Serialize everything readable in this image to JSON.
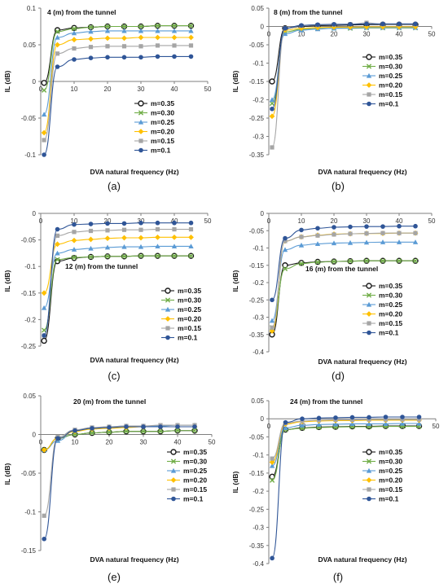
{
  "legend_labels": [
    "m=0.35",
    "m=0.30",
    "m=0.25",
    "m=0.20",
    "m=0.15",
    "m=0.1"
  ],
  "series_style": [
    {
      "color": "#1a1a1a",
      "marker": "circle-open"
    },
    {
      "color": "#70ad47",
      "marker": "x"
    },
    {
      "color": "#5b9bd5",
      "marker": "triangle"
    },
    {
      "color": "#ffc000",
      "marker": "diamond"
    },
    {
      "color": "#a5a5a5",
      "marker": "square"
    },
    {
      "color": "#2f5597",
      "marker": "circle"
    }
  ],
  "chart_data": [
    {
      "type": "line",
      "panel_label": "(a)",
      "annotation": "4 (m) from the tunnel",
      "xlabel": "DVA natural frequency (Hz)",
      "ylabel": "IL (dB)",
      "xlim": [
        0,
        50
      ],
      "ylim": [
        -0.1,
        0.1
      ],
      "xticks": [
        0,
        10,
        20,
        30,
        40,
        50
      ],
      "yticks": [
        -0.1,
        -0.05,
        0,
        0.05,
        0.1
      ],
      "xtick_labels": [
        "0",
        "10",
        "20",
        "30",
        "40",
        "50"
      ],
      "ytick_labels": [
        "-0.1",
        "-0.05",
        "0",
        "0.05",
        "0.1"
      ],
      "x": [
        1,
        5,
        10,
        15,
        20,
        25,
        30,
        35,
        40,
        45
      ],
      "series": [
        {
          "name": "m=0.35",
          "values": [
            -0.002,
            0.07,
            0.073,
            0.074,
            0.075,
            0.075,
            0.075,
            0.076,
            0.076,
            0.076
          ]
        },
        {
          "name": "m=0.30",
          "values": [
            -0.012,
            0.068,
            0.072,
            0.074,
            0.075,
            0.075,
            0.075,
            0.076,
            0.076,
            0.076
          ]
        },
        {
          "name": "m=0.25",
          "values": [
            -0.045,
            0.06,
            0.066,
            0.068,
            0.069,
            0.069,
            0.069,
            0.069,
            0.069,
            0.069
          ]
        },
        {
          "name": "m=0.20",
          "values": [
            -0.07,
            0.05,
            0.057,
            0.058,
            0.059,
            0.059,
            0.06,
            0.06,
            0.06,
            0.06
          ]
        },
        {
          "name": "m=0.15",
          "values": [
            -0.08,
            0.038,
            0.045,
            0.047,
            0.048,
            0.048,
            0.048,
            0.049,
            0.049,
            0.049
          ]
        },
        {
          "name": "m=0.1",
          "values": [
            -0.1,
            0.02,
            0.03,
            0.032,
            0.033,
            0.033,
            0.033,
            0.034,
            0.034,
            0.034
          ]
        }
      ]
    },
    {
      "type": "line",
      "panel_label": "(b)",
      "annotation": "8 (m) from the tunnel",
      "xlabel": "DVA natural frequency (Hz)",
      "ylabel": "IL (dB)",
      "xlim": [
        0,
        50
      ],
      "ylim": [
        -0.35,
        0.05
      ],
      "xticks": [
        0,
        10,
        20,
        30,
        40,
        50
      ],
      "yticks": [
        -0.35,
        -0.3,
        -0.25,
        -0.2,
        -0.15,
        -0.1,
        -0.05,
        0,
        0.05
      ],
      "xtick_labels": [
        "0",
        "10",
        "20",
        "30",
        "40",
        "50"
      ],
      "ytick_labels": [
        "-0.35",
        "-0.3",
        "-0.25",
        "-0.2",
        "-0.15",
        "-0.1",
        "-0.05",
        "0",
        "0.05"
      ],
      "x": [
        1,
        5,
        10,
        15,
        20,
        25,
        30,
        35,
        40,
        45
      ],
      "series": [
        {
          "name": "m=0.35",
          "values": [
            -0.15,
            -0.005,
            0.0,
            0.002,
            0.003,
            0.004,
            0.005,
            0.005,
            0.005,
            0.005
          ]
        },
        {
          "name": "m=0.30",
          "values": [
            -0.21,
            -0.015,
            -0.008,
            -0.006,
            -0.005,
            -0.005,
            -0.004,
            -0.004,
            -0.004,
            -0.004
          ]
        },
        {
          "name": "m=0.25",
          "values": [
            -0.2,
            -0.02,
            -0.01,
            -0.007,
            -0.005,
            -0.004,
            -0.003,
            -0.003,
            -0.003,
            -0.003
          ]
        },
        {
          "name": "m=0.20",
          "values": [
            -0.245,
            -0.01,
            -0.005,
            -0.003,
            -0.002,
            -0.002,
            -0.001,
            -0.001,
            -0.001,
            -0.001
          ]
        },
        {
          "name": "m=0.15",
          "values": [
            -0.33,
            -0.005,
            0.002,
            0.004,
            0.005,
            0.006,
            0.01,
            0.006,
            0.006,
            0.006
          ]
        },
        {
          "name": "m=0.1",
          "values": [
            -0.225,
            -0.005,
            0.003,
            0.005,
            0.006,
            0.006,
            0.007,
            0.007,
            0.007,
            0.007
          ]
        }
      ]
    },
    {
      "type": "line",
      "panel_label": "(c)",
      "annotation": "12 (m) from the tunnel",
      "xlabel": "DVA natural frequency (Hz)",
      "ylabel": "IL (dB)",
      "xlim": [
        0,
        50
      ],
      "ylim": [
        -0.25,
        0
      ],
      "xticks": [
        0,
        10,
        20,
        30,
        40,
        50
      ],
      "yticks": [
        -0.25,
        -0.2,
        -0.15,
        -0.1,
        -0.05,
        0
      ],
      "xtick_labels": [
        "0",
        "10",
        "20",
        "30",
        "40",
        "50"
      ],
      "ytick_labels": [
        "-0.25",
        "-0.2",
        "-0.15",
        "-0.1",
        "-0.05",
        "0"
      ],
      "x": [
        1,
        5,
        10,
        15,
        20,
        25,
        30,
        35,
        40,
        45
      ],
      "series": [
        {
          "name": "m=0.35",
          "values": [
            -0.24,
            -0.09,
            -0.084,
            -0.082,
            -0.081,
            -0.081,
            -0.08,
            -0.08,
            -0.08,
            -0.08
          ]
        },
        {
          "name": "m=0.30",
          "values": [
            -0.22,
            -0.087,
            -0.083,
            -0.082,
            -0.081,
            -0.081,
            -0.08,
            -0.08,
            -0.08,
            -0.08
          ]
        },
        {
          "name": "m=0.25",
          "values": [
            -0.178,
            -0.075,
            -0.068,
            -0.066,
            -0.064,
            -0.063,
            -0.063,
            -0.062,
            -0.062,
            -0.062
          ]
        },
        {
          "name": "m=0.20",
          "values": [
            -0.15,
            -0.058,
            -0.051,
            -0.049,
            -0.047,
            -0.046,
            -0.046,
            -0.045,
            -0.045,
            -0.045
          ]
        },
        {
          "name": "m=0.15",
          "values": [
            -0.23,
            -0.042,
            -0.035,
            -0.033,
            -0.032,
            -0.031,
            -0.031,
            -0.03,
            -0.03,
            -0.03
          ]
        },
        {
          "name": "m=0.1",
          "values": [
            -0.23,
            -0.03,
            -0.021,
            -0.02,
            -0.019,
            -0.019,
            -0.018,
            -0.018,
            -0.018,
            -0.018
          ]
        }
      ]
    },
    {
      "type": "line",
      "panel_label": "(d)",
      "annotation": "16 (m) from the tunnel",
      "xlabel": "DVA natural frequency (Hz)",
      "ylabel": "IL (dB)",
      "xlim": [
        0,
        50
      ],
      "ylim": [
        -0.4,
        0
      ],
      "xticks": [
        0,
        10,
        20,
        30,
        40,
        50
      ],
      "yticks": [
        -0.4,
        -0.35,
        -0.3,
        -0.25,
        -0.2,
        -0.15,
        -0.1,
        -0.05,
        0
      ],
      "xtick_labels": [
        "0",
        "10",
        "20",
        "30",
        "40",
        "50"
      ],
      "ytick_labels": [
        "-0.4",
        "-0.35",
        "-0.3",
        "-0.25",
        "-0.2",
        "-0.15",
        "-0.1",
        "-0.05",
        "0"
      ],
      "x": [
        1,
        5,
        10,
        15,
        20,
        25,
        30,
        35,
        40,
        45
      ],
      "series": [
        {
          "name": "m=0.35",
          "values": [
            -0.35,
            -0.15,
            -0.143,
            -0.14,
            -0.139,
            -0.138,
            -0.137,
            -0.137,
            -0.137,
            -0.137
          ]
        },
        {
          "name": "m=0.30",
          "values": [
            -0.33,
            -0.16,
            -0.145,
            -0.141,
            -0.139,
            -0.138,
            -0.137,
            -0.137,
            -0.137,
            -0.137
          ]
        },
        {
          "name": "m=0.25",
          "values": [
            -0.31,
            -0.105,
            -0.092,
            -0.088,
            -0.086,
            -0.085,
            -0.084,
            -0.083,
            -0.083,
            -0.083
          ]
        },
        {
          "name": "m=0.20",
          "values": [
            -0.34,
            -0.08,
            -0.068,
            -0.063,
            -0.06,
            -0.059,
            -0.058,
            -0.058,
            -0.057,
            -0.057
          ]
        },
        {
          "name": "m=0.15",
          "values": [
            -0.33,
            -0.08,
            -0.068,
            -0.064,
            -0.061,
            -0.059,
            -0.058,
            -0.057,
            -0.057,
            -0.057
          ]
        },
        {
          "name": "m=0.1",
          "values": [
            -0.25,
            -0.072,
            -0.048,
            -0.043,
            -0.04,
            -0.039,
            -0.038,
            -0.038,
            -0.037,
            -0.037
          ]
        }
      ]
    },
    {
      "type": "line",
      "panel_label": "(e)",
      "annotation": "20 (m) from the tunnel",
      "xlabel": "DVA natural frequency (Hz)",
      "ylabel": "IL (dB)",
      "xlim": [
        0,
        50
      ],
      "ylim": [
        -0.15,
        0.05
      ],
      "xticks": [
        0,
        10,
        20,
        30,
        40,
        50
      ],
      "yticks": [
        -0.15,
        -0.1,
        -0.05,
        0,
        0.05
      ],
      "xtick_labels": [
        "0",
        "10",
        "20",
        "30",
        "40",
        "50"
      ],
      "ytick_labels": [
        "-0.15",
        "-0.1",
        "-0.05",
        "0",
        "0.05"
      ],
      "x": [
        1,
        5,
        10,
        15,
        20,
        25,
        30,
        35,
        40,
        45
      ],
      "series": [
        {
          "name": "m=0.35",
          "values": [
            -0.02,
            -0.005,
            0.0,
            0.002,
            0.003,
            0.004,
            0.004,
            0.004,
            0.005,
            0.005
          ]
        },
        {
          "name": "m=0.30",
          "values": [
            -0.02,
            -0.005,
            0.0,
            0.002,
            0.003,
            0.004,
            0.004,
            0.004,
            0.005,
            0.005
          ]
        },
        {
          "name": "m=0.25",
          "values": [
            -0.02,
            -0.008,
            0.005,
            0.008,
            0.01,
            0.011,
            0.011,
            0.011,
            0.012,
            0.012
          ]
        },
        {
          "name": "m=0.20",
          "values": [
            -0.02,
            -0.005,
            0.004,
            0.007,
            0.008,
            0.009,
            0.01,
            0.01,
            0.01,
            0.01
          ]
        },
        {
          "name": "m=0.15",
          "values": [
            -0.105,
            -0.003,
            0.006,
            0.009,
            0.01,
            0.011,
            0.011,
            0.012,
            0.012,
            0.012
          ]
        },
        {
          "name": "m=0.1",
          "values": [
            -0.135,
            -0.005,
            0.005,
            0.008,
            0.009,
            0.01,
            0.01,
            0.01,
            0.01,
            0.01
          ]
        }
      ]
    },
    {
      "type": "line",
      "panel_label": "(f)",
      "annotation": "24 (m) from the tunnel",
      "xlabel": "DVA natural frequency (Hz)",
      "ylabel": "IL (dB)",
      "xlim": [
        0,
        50
      ],
      "ylim": [
        -0.4,
        0.05
      ],
      "xticks": [
        0,
        10,
        20,
        30,
        40,
        50
      ],
      "yticks": [
        -0.4,
        -0.35,
        -0.3,
        -0.25,
        -0.2,
        -0.15,
        -0.1,
        -0.05,
        0,
        0.05
      ],
      "xtick_labels": [
        "0",
        "10",
        "20",
        "30",
        "40",
        "50"
      ],
      "ytick_labels": [
        "-0.4",
        "-0.35",
        "-0.3",
        "-0.25",
        "-0.2",
        "-0.15",
        "-0.1",
        "-0.05",
        "0",
        "0.05"
      ],
      "x": [
        1,
        5,
        10,
        15,
        20,
        25,
        30,
        35,
        40,
        45
      ],
      "series": [
        {
          "name": "m=0.35",
          "values": [
            -0.16,
            -0.03,
            -0.025,
            -0.023,
            -0.022,
            -0.021,
            -0.021,
            -0.02,
            -0.02,
            -0.02
          ]
        },
        {
          "name": "m=0.30",
          "values": [
            -0.17,
            -0.03,
            -0.026,
            -0.024,
            -0.023,
            -0.022,
            -0.022,
            -0.021,
            -0.021,
            -0.021
          ]
        },
        {
          "name": "m=0.25",
          "values": [
            -0.13,
            -0.025,
            -0.018,
            -0.016,
            -0.015,
            -0.014,
            -0.014,
            -0.014,
            -0.013,
            -0.013
          ]
        },
        {
          "name": "m=0.20",
          "values": [
            -0.12,
            -0.015,
            -0.008,
            -0.006,
            -0.005,
            -0.005,
            -0.004,
            -0.004,
            -0.004,
            -0.004
          ]
        },
        {
          "name": "m=0.15",
          "values": [
            -0.11,
            -0.012,
            -0.006,
            -0.004,
            -0.003,
            -0.003,
            -0.002,
            -0.002,
            -0.002,
            -0.002
          ]
        },
        {
          "name": "m=0.1",
          "values": [
            -0.385,
            -0.01,
            0.0,
            0.002,
            0.003,
            0.004,
            0.004,
            0.005,
            0.005,
            0.005
          ]
        }
      ]
    }
  ]
}
